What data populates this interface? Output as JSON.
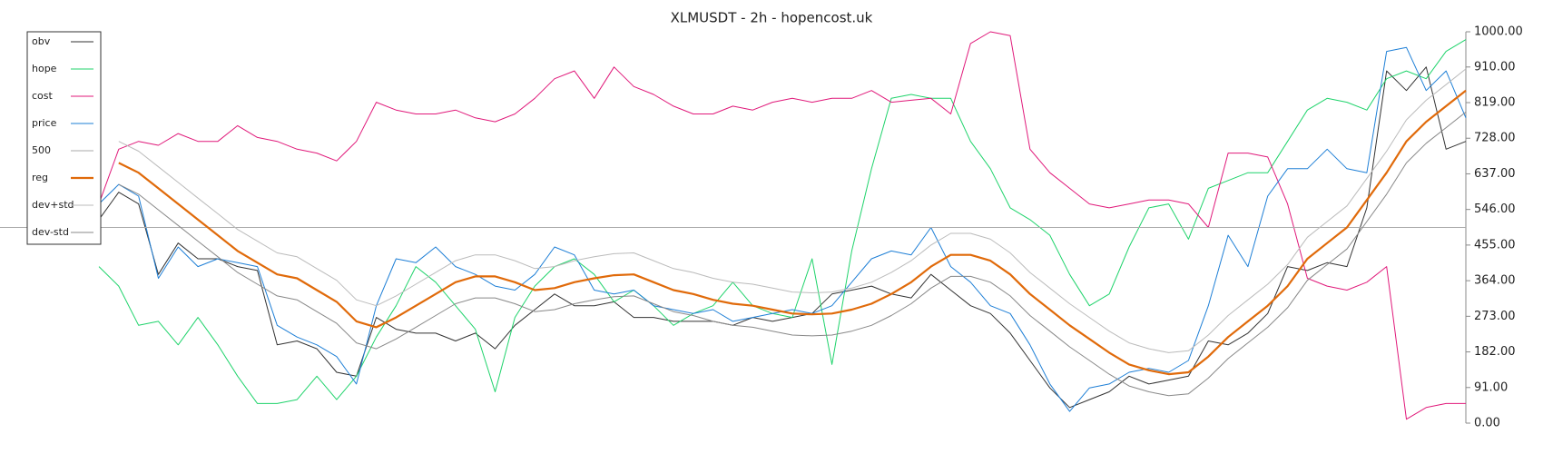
{
  "chart_data": {
    "type": "line",
    "title": "XLMUSDT - 2h - hopencost.uk",
    "ylim": [
      0,
      1000
    ],
    "yticks": [
      {
        "value": 0,
        "label": "0.00"
      },
      {
        "value": 91,
        "label": "91.00"
      },
      {
        "value": 182,
        "label": "182.00"
      },
      {
        "value": 273,
        "label": "273.00"
      },
      {
        "value": 364,
        "label": "364.00"
      },
      {
        "value": 455,
        "label": "455.00"
      },
      {
        "value": 546,
        "label": "546.00"
      },
      {
        "value": 637,
        "label": "637.00"
      },
      {
        "value": 728,
        "label": "728.00"
      },
      {
        "value": 819,
        "label": "819.00"
      },
      {
        "value": 910,
        "label": "910.00"
      },
      {
        "value": 1000,
        "label": "1000.00"
      }
    ],
    "legend": "top-left",
    "series": [
      {
        "name": "obv",
        "color": "#333333",
        "width": 1,
        "values": [
          520,
          590,
          560,
          380,
          460,
          420,
          420,
          400,
          390,
          200,
          210,
          190,
          130,
          120,
          270,
          240,
          230,
          230,
          210,
          230,
          190,
          250,
          290,
          330,
          300,
          300,
          310,
          270,
          270,
          260,
          260,
          260,
          250,
          270,
          260,
          270,
          280,
          330,
          340,
          350,
          330,
          320,
          380,
          340,
          300,
          280,
          230,
          160,
          90,
          40,
          60,
          80,
          120,
          100,
          110,
          120,
          210,
          200,
          230,
          280,
          400,
          390,
          410,
          400,
          550,
          900,
          850,
          910,
          700,
          720
        ]
      },
      {
        "name": "hope",
        "color": "#1fd36b",
        "width": 1,
        "values": [
          400,
          350,
          250,
          260,
          200,
          270,
          200,
          120,
          50,
          50,
          60,
          120,
          60,
          120,
          220,
          300,
          400,
          360,
          300,
          240,
          80,
          270,
          350,
          400,
          420,
          380,
          310,
          340,
          300,
          250,
          280,
          300,
          360,
          300,
          280,
          270,
          420,
          150,
          440,
          650,
          830,
          840,
          830,
          830,
          720,
          650,
          550,
          520,
          480,
          380,
          300,
          330,
          450,
          550,
          560,
          470,
          600,
          620,
          640,
          640,
          720,
          800,
          830,
          820,
          800,
          880,
          900,
          880,
          950,
          980
        ]
      },
      {
        "name": "cost",
        "color": "#e0197a",
        "width": 1,
        "values": [
          560,
          700,
          720,
          710,
          740,
          720,
          720,
          760,
          730,
          720,
          700,
          690,
          670,
          720,
          820,
          800,
          790,
          790,
          800,
          780,
          770,
          790,
          830,
          880,
          900,
          830,
          910,
          860,
          840,
          810,
          790,
          790,
          810,
          800,
          820,
          830,
          820,
          830,
          830,
          850,
          820,
          825,
          830,
          790,
          970,
          1000,
          990,
          700,
          640,
          600,
          560,
          550,
          560,
          570,
          570,
          560,
          500,
          690,
          690,
          680,
          560,
          370,
          350,
          340,
          360,
          400,
          10,
          40,
          50,
          50
        ]
      },
      {
        "name": "price",
        "color": "#1e7fd6",
        "width": 1,
        "values": [
          560,
          610,
          580,
          370,
          450,
          400,
          420,
          410,
          400,
          250,
          220,
          200,
          170,
          100,
          300,
          420,
          410,
          450,
          400,
          380,
          350,
          340,
          380,
          450,
          430,
          340,
          330,
          340,
          300,
          290,
          280,
          290,
          260,
          270,
          280,
          290,
          280,
          300,
          360,
          420,
          440,
          430,
          500,
          400,
          360,
          300,
          280,
          200,
          100,
          30,
          90,
          100,
          130,
          140,
          130,
          160,
          300,
          480,
          400,
          580,
          650,
          650,
          700,
          650,
          640,
          950,
          960,
          850,
          900,
          780
        ]
      },
      {
        "name": "500",
        "color": "#aaaaaa",
        "width": 1,
        "value": 500
      },
      {
        "name": "reg",
        "color": "#e06a0a",
        "width": 2.2,
        "values": [
          null,
          665,
          640,
          600,
          560,
          520,
          480,
          440,
          410,
          380,
          370,
          340,
          310,
          260,
          245,
          270,
          300,
          330,
          360,
          375,
          375,
          360,
          340,
          345,
          360,
          370,
          378,
          380,
          360,
          340,
          330,
          315,
          305,
          300,
          290,
          280,
          278,
          280,
          290,
          305,
          330,
          360,
          400,
          430,
          430,
          415,
          380,
          330,
          290,
          250,
          215,
          180,
          150,
          135,
          125,
          130,
          170,
          220,
          260,
          300,
          350,
          420,
          460,
          500,
          570,
          640,
          720,
          770,
          810,
          850
        ]
      },
      {
        "name": "dev+std",
        "color": "#bbbbbb",
        "width": 1,
        "values": [
          null,
          720,
          695,
          655,
          615,
          575,
          535,
          495,
          465,
          435,
          425,
          395,
          365,
          315,
          300,
          325,
          355,
          385,
          415,
          430,
          430,
          415,
          395,
          400,
          415,
          425,
          433,
          435,
          415,
          395,
          385,
          370,
          360,
          355,
          345,
          335,
          333,
          335,
          345,
          360,
          385,
          415,
          455,
          485,
          485,
          470,
          435,
          385,
          345,
          305,
          270,
          235,
          205,
          190,
          180,
          185,
          225,
          275,
          315,
          355,
          405,
          475,
          515,
          555,
          625,
          695,
          775,
          825,
          865,
          905
        ]
      },
      {
        "name": "dev-std",
        "color": "#888888",
        "width": 1,
        "values": [
          null,
          610,
          585,
          545,
          505,
          465,
          425,
          385,
          355,
          325,
          315,
          285,
          255,
          205,
          190,
          215,
          245,
          275,
          305,
          320,
          320,
          305,
          285,
          290,
          305,
          315,
          323,
          325,
          305,
          285,
          275,
          260,
          250,
          245,
          235,
          225,
          223,
          225,
          235,
          250,
          275,
          305,
          345,
          375,
          375,
          360,
          325,
          275,
          235,
          195,
          160,
          125,
          95,
          80,
          70,
          75,
          115,
          165,
          205,
          245,
          295,
          365,
          405,
          445,
          515,
          585,
          665,
          715,
          755,
          795
        ]
      }
    ]
  }
}
